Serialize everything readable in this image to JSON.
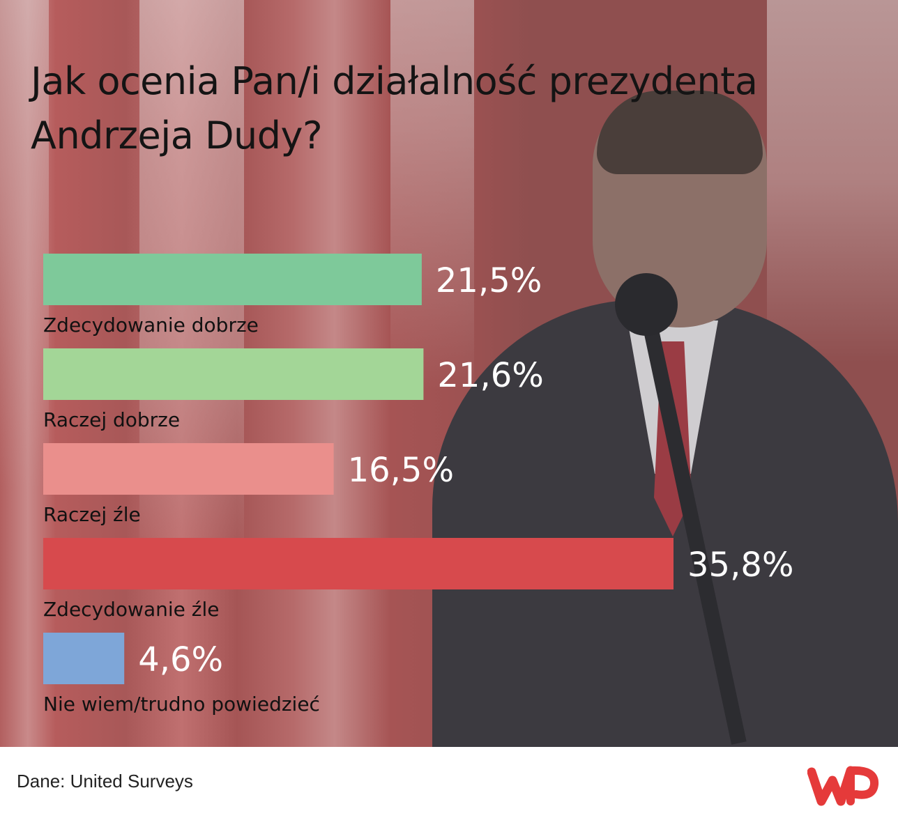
{
  "title": "Jak ocenia Pan/i działalność prezydenta Andrzeja Dudy?",
  "footer": {
    "source": "Dane: United Surveys"
  },
  "logo": {
    "icon": "wp-logo-icon",
    "color": "#e53a3a"
  },
  "chart_data": {
    "type": "bar",
    "orientation": "horizontal",
    "title": "Jak ocenia Pan/i działalność prezydenta Andrzeja Dudy?",
    "categories": [
      "Zdecydowanie dobrze",
      "Raczej dobrze",
      "Raczej źle",
      "Zdecydowanie źle",
      "Nie wiem/trudno powiedzieć"
    ],
    "values": [
      21.5,
      21.6,
      16.5,
      35.8,
      4.6
    ],
    "value_labels": [
      "21,5%",
      "21,6%",
      "16,5%",
      "35,8%",
      "4,6%"
    ],
    "unit": "%",
    "colors": [
      "#7ec99a",
      "#a3d697",
      "#ea8f8c",
      "#d74a4d",
      "#7ea6d8"
    ],
    "grid": false,
    "legend": "none"
  }
}
